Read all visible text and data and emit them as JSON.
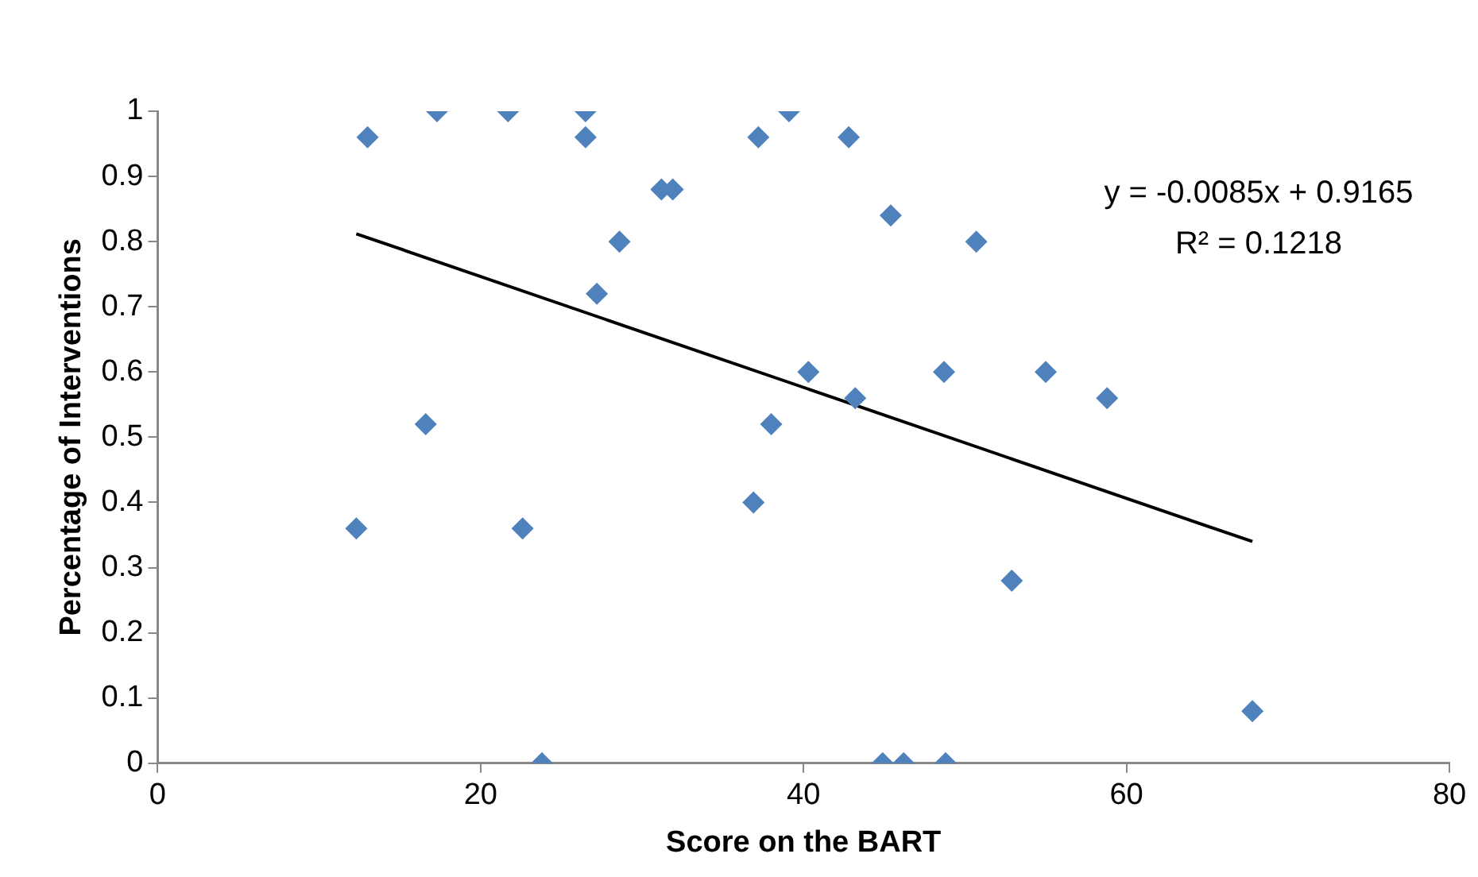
{
  "chart_data": {
    "type": "scatter",
    "xlabel": "Score on the BART",
    "ylabel": "Percentage of Interventions",
    "xlim": [
      0,
      80
    ],
    "xticks": [
      0,
      20,
      40,
      60,
      80
    ],
    "ylim": [
      0,
      1
    ],
    "yticks": [
      0,
      0.1,
      0.2,
      0.3,
      0.4,
      0.5,
      0.6,
      0.7,
      0.8,
      0.9,
      1
    ],
    "grid": false,
    "legend": false,
    "marker": "diamond",
    "annotations": [
      "y = -0.0085x + 0.9165",
      "R² = 0.1218"
    ],
    "series": [
      {
        "color": "#4f81bd",
        "x": [
          12.3,
          13.0,
          17.3,
          16.6,
          21.7,
          22.6,
          23.8,
          26.5,
          26.5,
          27.2,
          28.6,
          31.2,
          31.9,
          36.9,
          37.2,
          38.0,
          39.1,
          40.3,
          42.8,
          43.2,
          45.4,
          44.9,
          46.2,
          48.8,
          48.7,
          50.7,
          52.9,
          55.0,
          58.8,
          67.8
        ],
        "values": [
          0.36,
          0.96,
          1.0,
          0.52,
          1.0,
          0.36,
          0,
          1.0,
          0.96,
          0.72,
          0.8,
          0.88,
          0.88,
          0.4,
          0.96,
          0.52,
          1.0,
          0.6,
          0.96,
          0.56,
          0.84,
          0,
          0,
          0,
          0.6,
          0.8,
          0.28,
          0.6,
          0.56,
          0.08
        ]
      },
      {
        "type": "line",
        "color": "#000000",
        "marker": "none",
        "x": [
          12.3,
          67.8
        ],
        "values": [
          0.812,
          0.34
        ]
      }
    ]
  }
}
